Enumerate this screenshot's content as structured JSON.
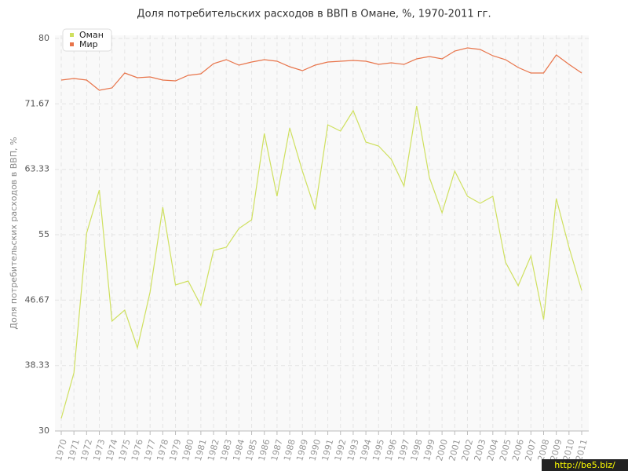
{
  "chart_data": {
    "type": "line",
    "title": "Доля потребительских расходов в ВВП в Омане, %, 1970-2011 гг.",
    "y_label": "Доля потребительских расходов в ВВП, %",
    "watermark": "http://be5.biz/",
    "categories": [
      "1970",
      "1971",
      "1972",
      "1973",
      "1974",
      "1975",
      "1976",
      "1977",
      "1978",
      "1979",
      "1980",
      "1981",
      "1982",
      "1983",
      "1984",
      "1985",
      "1986",
      "1987",
      "1988",
      "1989",
      "1990",
      "1991",
      "1992",
      "1993",
      "1994",
      "1995",
      "1996",
      "1997",
      "1998",
      "1999",
      "2000",
      "2001",
      "2002",
      "2003",
      "2004",
      "2005",
      "2006",
      "2007",
      "2008",
      "2009",
      "2010",
      "2011"
    ],
    "series": [
      {
        "name": "Оман",
        "color": "#cfe05f",
        "values": [
          31.6,
          37.4,
          55.2,
          60.7,
          44.0,
          45.4,
          40.6,
          47.7,
          58.5,
          48.6,
          49.1,
          46.0,
          53.0,
          53.4,
          55.8,
          56.9,
          67.9,
          59.9,
          68.6,
          63.1,
          58.2,
          69.0,
          68.2,
          70.8,
          66.8,
          66.3,
          64.6,
          61.2,
          71.4,
          62.3,
          57.8,
          63.1,
          59.9,
          59.0,
          59.9,
          51.5,
          48.5,
          52.3,
          44.2,
          59.6,
          53.4,
          47.9
        ]
      },
      {
        "name": "Мир",
        "color": "#e8744a",
        "values": [
          74.7,
          74.9,
          74.7,
          73.4,
          73.7,
          75.6,
          75.0,
          75.1,
          74.7,
          74.6,
          75.3,
          75.5,
          76.8,
          77.3,
          76.6,
          77.0,
          77.3,
          77.1,
          76.4,
          75.9,
          76.6,
          77.0,
          77.1,
          77.2,
          77.1,
          76.7,
          76.9,
          76.7,
          77.4,
          77.7,
          77.4,
          78.4,
          78.8,
          78.6,
          77.8,
          77.3,
          76.3,
          75.6,
          75.6,
          77.9,
          76.7,
          75.6
        ]
      }
    ],
    "ylim": [
      30,
      80
    ],
    "yticks": [
      30,
      38.33,
      46.67,
      55,
      63.33,
      71.67,
      80
    ],
    "grid": true
  }
}
